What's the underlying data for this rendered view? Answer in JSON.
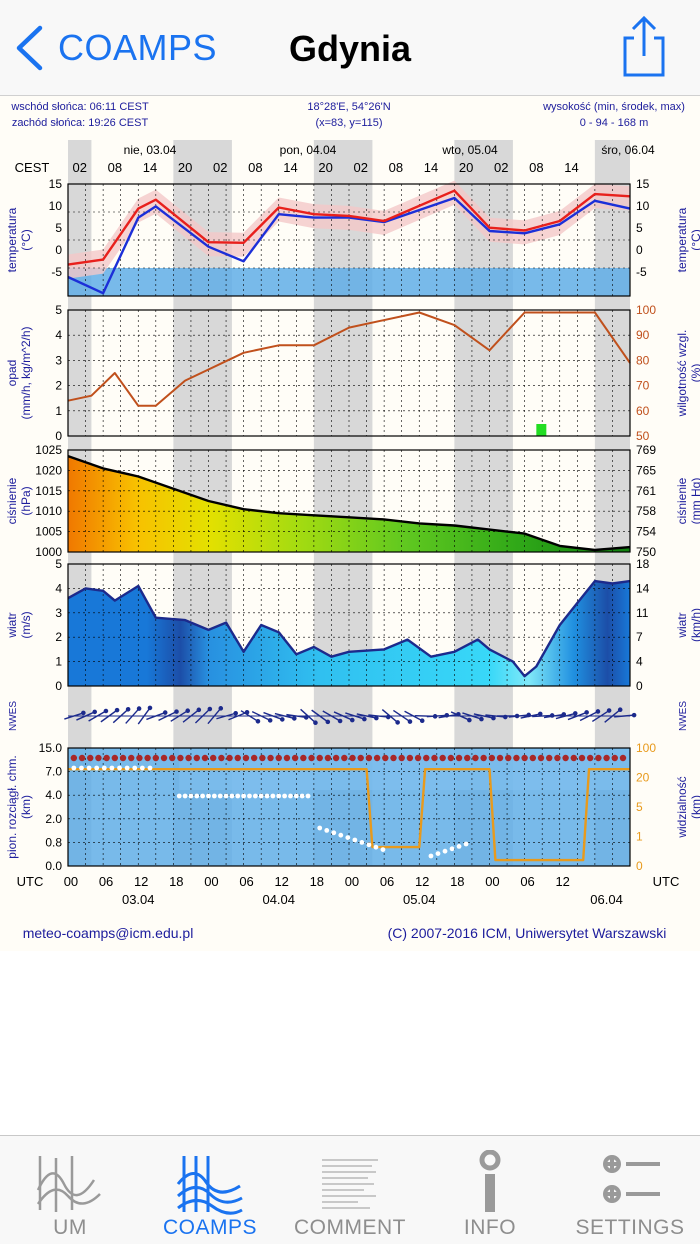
{
  "nav": {
    "back_label": "COAMPS",
    "title": "Gdynia"
  },
  "meteogram": {
    "header": {
      "sunrise": "wschód słońca: 06:11 CEST",
      "sunset": "zachód słońca: 19:26 CEST",
      "coords": "18°28'E, 54°26'N",
      "grid": "(x=83, y=115)",
      "elevation_label": "wysokość (min, środek, max)",
      "elevation_values": "0 - 94 - 168 m"
    },
    "days": [
      "nie, 03.04",
      "pon, 04.04",
      "wto, 05.04",
      "śro, 06.04"
    ],
    "top_tz": "CEST",
    "cest_hours": [
      "02",
      "08",
      "14",
      "20",
      "02",
      "08",
      "14",
      "20",
      "02",
      "08",
      "14",
      "20",
      "02",
      "08",
      "14"
    ],
    "utc_label": "UTC",
    "utc_hours": [
      "00",
      "06",
      "12",
      "18",
      "00",
      "06",
      "12",
      "18",
      "00",
      "06",
      "12",
      "18",
      "00",
      "06",
      "12"
    ],
    "utc_dates": [
      "03.04",
      "04.04",
      "05.04",
      "06.04"
    ],
    "panels": {
      "temperature": {
        "left_label": "temperatura",
        "left_unit": "(°C)",
        "right_label": "temperatura",
        "right_unit": "(°C)",
        "ticks": [
          "15",
          "10",
          "5",
          "0",
          "-5"
        ]
      },
      "precip": {
        "left_label": "opad",
        "left_unit": "(mm/h, kg/m^2/h)",
        "right_label": "wilgotność wzgl.",
        "right_unit": "(%)",
        "left_ticks": [
          "5",
          "4",
          "3",
          "2",
          "1",
          "0"
        ],
        "right_ticks": [
          "100",
          "90",
          "80",
          "70",
          "60",
          "50"
        ]
      },
      "pressure": {
        "left_label": "ciśnienie",
        "left_unit": "(hPa)",
        "right_label": "ciśnienie",
        "right_unit": "(mm Hg)",
        "left_ticks": [
          "1025",
          "1020",
          "1015",
          "1010",
          "1005",
          "1000"
        ],
        "right_ticks": [
          "769",
          "765",
          "761",
          "758",
          "754",
          "750"
        ]
      },
      "wind": {
        "left_label": "wiatr",
        "left_unit": "(m/s)",
        "right_label": "wiatr",
        "right_unit": "(km/h)",
        "left_ticks": [
          "5",
          "4",
          "3",
          "2",
          "1",
          "0"
        ],
        "right_ticks": [
          "18",
          "14",
          "11",
          "7",
          "4",
          "0"
        ]
      },
      "wind_dir": {
        "compass": "N W E S"
      },
      "clouds": {
        "left_label": "pion. rozciągł. chm.",
        "left_unit": "(km)",
        "right_label": "widzialność",
        "right_unit": "(km)",
        "left_ticks": [
          "15.0",
          "7.0",
          "4.0",
          "2.0",
          "0.8",
          "0.0"
        ],
        "right_ticks": [
          "100",
          "20",
          "5",
          "1",
          "0"
        ]
      }
    },
    "footer": {
      "email": "meteo-coamps@icm.edu.pl",
      "copyright": "(C) 2007-2016 ICM, Uniwersytet Warszawski"
    },
    "colors": {
      "temperature": "#e8201c",
      "dewpoint": "#1c2fd8",
      "humidity": "#c0501c",
      "wind": "#1c2a8c",
      "label_blue": "#1c1c9c",
      "visibility": "#e89a1c"
    },
    "chart_data": [
      {
        "type": "line",
        "x_units": "hours UTC from 03.04 00:00",
        "series": [
          {
            "values": [
              [
                0,
                0.6
              ],
              [
                6,
                1.5
              ],
              [
                12,
                10.6
              ],
              [
                15,
                12.2
              ],
              [
                24,
                4.6
              ],
              [
                30,
                4.5
              ],
              [
                36,
                10.8
              ],
              [
                42,
                9.6
              ],
              [
                48,
                9.3
              ],
              [
                54,
                8.4
              ],
              [
                66,
                13.8
              ],
              [
                72,
                7.2
              ],
              [
                78,
                6.7
              ],
              [
                84,
                8.4
              ],
              [
                90,
                13.2
              ],
              [
                96,
                12.8
              ]
            ]
          },
          {
            "values": [
              [
                0,
                -1.6
              ],
              [
                6,
                -4.5
              ],
              [
                12,
                9.0
              ],
              [
                15,
                11.0
              ],
              [
                24,
                3.8
              ],
              [
                30,
                1.2
              ],
              [
                36,
                9.6
              ],
              [
                42,
                9.0
              ],
              [
                48,
                9.0
              ],
              [
                54,
                8.2
              ],
              [
                66,
                12.5
              ],
              [
                72,
                6.6
              ],
              [
                78,
                6.2
              ],
              [
                84,
                7.8
              ],
              [
                90,
                12.0
              ],
              [
                96,
                10.6
              ]
            ]
          }
        ],
        "ylim": [
          -5,
          15
        ]
      },
      {
        "type": "line",
        "x_units": "hours UTC from 03.04 00:00",
        "series": [
          {
            "values": [
              [
                0,
                64
              ],
              [
                4,
                66
              ],
              [
                8,
                75
              ],
              [
                12,
                62
              ],
              [
                15,
                62
              ],
              [
                20,
                72
              ],
              [
                30,
                83
              ],
              [
                36,
                86
              ],
              [
                42,
                86
              ],
              [
                48,
                93
              ],
              [
                60,
                99
              ],
              [
                66,
                94
              ],
              [
                72,
                84
              ],
              [
                78,
                99
              ],
              [
                84,
                99
              ],
              [
                90,
                99
              ],
              [
                96,
                79
              ]
            ]
          }
        ],
        "ylim": [
          50,
          100
        ]
      },
      {
        "type": "line",
        "x_units": "hours UTC from 03.04 00:00",
        "series": [
          {
            "values": [
              [
                0,
                1023.5
              ],
              [
                6,
                1020.5
              ],
              [
                12,
                1018.5
              ],
              [
                18,
                1015.5
              ],
              [
                24,
                1012.5
              ],
              [
                30,
                1010.5
              ],
              [
                36,
                1009.5
              ],
              [
                42,
                1009.0
              ],
              [
                48,
                1008.5
              ],
              [
                54,
                1008.0
              ],
              [
                60,
                1007.0
              ],
              [
                66,
                1006.5
              ],
              [
                72,
                1005.5
              ],
              [
                78,
                1004.5
              ],
              [
                84,
                1001.5
              ],
              [
                90,
                1000.5
              ],
              [
                96,
                1001.2
              ]
            ]
          }
        ],
        "ylim": [
          1000,
          1025
        ]
      },
      {
        "type": "line",
        "x_units": "hours UTC from 03.04 00:00",
        "series": [
          {
            "values": [
              [
                0,
                3.6
              ],
              [
                3,
                4.0
              ],
              [
                6,
                3.9
              ],
              [
                8,
                3.5
              ],
              [
                12,
                4.1
              ],
              [
                15,
                2.8
              ],
              [
                20,
                2.7
              ],
              [
                24,
                2.3
              ],
              [
                27,
                2.6
              ],
              [
                30,
                1.4
              ],
              [
                33,
                2.5
              ],
              [
                36,
                2.2
              ],
              [
                39,
                1.3
              ],
              [
                42,
                1.6
              ],
              [
                45,
                1.2
              ],
              [
                48,
                1.4
              ],
              [
                54,
                1.5
              ],
              [
                58,
                1.9
              ],
              [
                62,
                1.2
              ],
              [
                66,
                1.4
              ],
              [
                70,
                1.9
              ],
              [
                72,
                1.5
              ],
              [
                76,
                1.0
              ],
              [
                78,
                0.4
              ],
              [
                80,
                0.8
              ],
              [
                84,
                2.5
              ],
              [
                87,
                3.4
              ],
              [
                90,
                4.3
              ],
              [
                93,
                4.2
              ],
              [
                96,
                4.3
              ]
            ]
          }
        ],
        "ylim": [
          0,
          5
        ]
      },
      {
        "type": "line",
        "x_units": "hours UTC from 03.04 00:00",
        "series": [
          {
            "values": [
              [
                0,
                82
              ],
              [
                12,
                82
              ],
              [
                18,
                82
              ],
              [
                24,
                82
              ],
              [
                36,
                82
              ],
              [
                42,
                82
              ],
              [
                48,
                82
              ],
              [
                51,
                82
              ],
              [
                52,
                16
              ],
              [
                60,
                16
              ],
              [
                61,
                82
              ],
              [
                72,
                82
              ],
              [
                73,
                5
              ],
              [
                88,
                5
              ],
              [
                89,
                82
              ],
              [
                96,
                82
              ]
            ]
          }
        ],
        "ylim": [
          0,
          100
        ]
      }
    ]
  },
  "tabs": [
    {
      "label": "UM"
    },
    {
      "label": "COAMPS"
    },
    {
      "label": "COMMENT"
    },
    {
      "label": "INFO"
    },
    {
      "label": "SETTINGS"
    }
  ]
}
